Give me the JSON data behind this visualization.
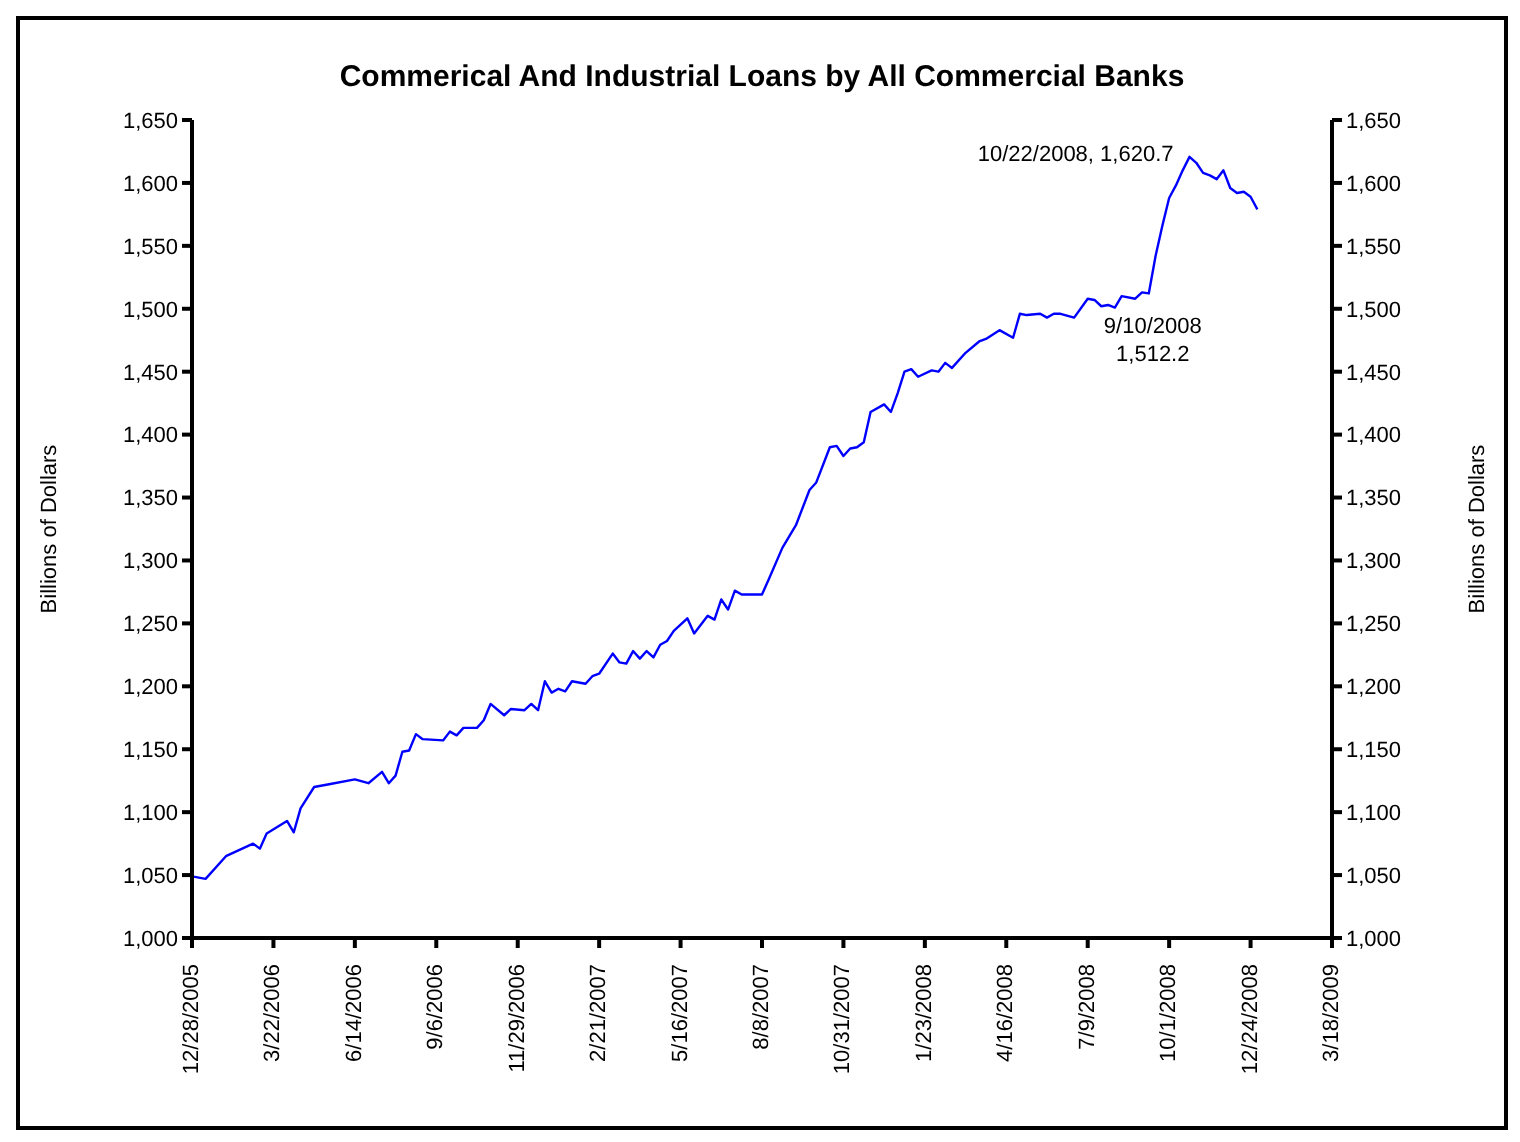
{
  "chart_data": {
    "type": "line",
    "title": "Commerical And Industrial Loans by All Commercial Banks",
    "ylabel": "Billions of Dollars",
    "y2label": "Billions of Dollars",
    "x": [
      "2005-12-28",
      "2006-01-11",
      "2006-02-01",
      "2006-03-01",
      "2006-03-08",
      "2006-03-15",
      "2006-04-05",
      "2006-04-12",
      "2006-04-19",
      "2006-05-03",
      "2006-05-17",
      "2006-06-14",
      "2006-06-28",
      "2006-07-12",
      "2006-07-19",
      "2006-07-26",
      "2006-08-02",
      "2006-08-09",
      "2006-08-16",
      "2006-08-23",
      "2006-09-13",
      "2006-09-20",
      "2006-09-27",
      "2006-10-04",
      "2006-10-18",
      "2006-10-25",
      "2006-11-01",
      "2006-11-15",
      "2006-11-22",
      "2006-12-06",
      "2006-12-13",
      "2006-12-20",
      "2006-12-27",
      "2007-01-03",
      "2007-01-10",
      "2007-01-17",
      "2007-01-24",
      "2007-02-07",
      "2007-02-14",
      "2007-02-21",
      "2007-03-07",
      "2007-03-14",
      "2007-03-21",
      "2007-03-28",
      "2007-04-04",
      "2007-04-11",
      "2007-04-18",
      "2007-04-25",
      "2007-05-02",
      "2007-05-09",
      "2007-05-23",
      "2007-05-30",
      "2007-06-13",
      "2007-06-20",
      "2007-06-27",
      "2007-07-04",
      "2007-07-11",
      "2007-07-18",
      "2007-08-08",
      "2007-08-15",
      "2007-08-29",
      "2007-09-12",
      "2007-09-26",
      "2007-10-03",
      "2007-10-17",
      "2007-10-24",
      "2007-10-31",
      "2007-11-07",
      "2007-11-14",
      "2007-11-21",
      "2007-11-28",
      "2007-12-12",
      "2007-12-19",
      "2007-12-26",
      "2008-01-02",
      "2008-01-09",
      "2008-01-16",
      "2008-01-30",
      "2008-02-06",
      "2008-02-13",
      "2008-02-20",
      "2008-03-05",
      "2008-03-19",
      "2008-03-26",
      "2008-04-09",
      "2008-04-23",
      "2008-04-30",
      "2008-05-07",
      "2008-05-21",
      "2008-05-28",
      "2008-06-04",
      "2008-06-11",
      "2008-06-25",
      "2008-07-09",
      "2008-07-16",
      "2008-07-23",
      "2008-07-30",
      "2008-08-06",
      "2008-08-13",
      "2008-08-27",
      "2008-09-03",
      "2008-09-10",
      "2008-09-17",
      "2008-09-24",
      "2008-10-01",
      "2008-10-08",
      "2008-10-15",
      "2008-10-22",
      "2008-10-29",
      "2008-11-05",
      "2008-11-12",
      "2008-11-19",
      "2008-11-26",
      "2008-12-03",
      "2008-12-10",
      "2008-12-17",
      "2008-12-24",
      "2008-12-31"
    ],
    "series": [
      {
        "color": "#0000ff",
        "values": [
          1049,
          1047,
          1065,
          1075,
          1071,
          1083,
          1093,
          1084,
          1103,
          1120,
          1122,
          1126,
          1123,
          1132,
          1123,
          1129,
          1148,
          1149,
          1162,
          1158,
          1157,
          1164,
          1161,
          1167,
          1167,
          1173,
          1186,
          1177,
          1182,
          1181,
          1186,
          1181,
          1204,
          1195,
          1198,
          1196,
          1204,
          1202,
          1208,
          1210,
          1226,
          1219,
          1218,
          1228,
          1222,
          1228,
          1223,
          1233,
          1236,
          1244,
          1254,
          1242,
          1256,
          1253,
          1269,
          1261,
          1276,
          1273,
          1273,
          1285,
          1310,
          1328,
          1356,
          1362,
          1390,
          1391,
          1383,
          1389,
          1390,
          1394,
          1418,
          1424,
          1418,
          1433,
          1450,
          1452,
          1446,
          1451,
          1450,
          1457,
          1453,
          1465,
          1474,
          1476,
          1483,
          1477,
          1496,
          1495,
          1496,
          1493,
          1496,
          1496,
          1493,
          1508,
          1507,
          1502,
          1503,
          1501,
          1510,
          1508,
          1513,
          1512.2,
          1542,
          1566,
          1588,
          1598,
          1610,
          1620.7,
          1616,
          1608,
          1606,
          1603,
          1610,
          1596,
          1592,
          1593,
          1589,
          1579
        ]
      }
    ],
    "xlim": [
      "2005-12-28",
      "2009-03-18"
    ],
    "xticks": [
      {
        "value": "2005-12-28",
        "label": "12/28/2005"
      },
      {
        "value": "2006-03-22",
        "label": "3/22/2006"
      },
      {
        "value": "2006-06-14",
        "label": "6/14/2006"
      },
      {
        "value": "2006-09-06",
        "label": "9/6/2006"
      },
      {
        "value": "2006-11-29",
        "label": "11/29/2006"
      },
      {
        "value": "2007-02-21",
        "label": "2/21/2007"
      },
      {
        "value": "2007-05-16",
        "label": "5/16/2007"
      },
      {
        "value": "2007-08-08",
        "label": "8/8/2007"
      },
      {
        "value": "2007-10-31",
        "label": "10/31/2007"
      },
      {
        "value": "2008-01-23",
        "label": "1/23/2008"
      },
      {
        "value": "2008-04-16",
        "label": "4/16/2008"
      },
      {
        "value": "2008-07-09",
        "label": "7/9/2008"
      },
      {
        "value": "2008-10-01",
        "label": "10/1/2008"
      },
      {
        "value": "2008-12-24",
        "label": "12/24/2008"
      },
      {
        "value": "2009-03-18",
        "label": "3/18/2009"
      }
    ],
    "ylim": [
      1000,
      1650
    ],
    "yticks": [
      {
        "value": 1000,
        "label": "1,000"
      },
      {
        "value": 1050,
        "label": "1,050"
      },
      {
        "value": 1100,
        "label": "1,100"
      },
      {
        "value": 1150,
        "label": "1,150"
      },
      {
        "value": 1200,
        "label": "1,200"
      },
      {
        "value": 1250,
        "label": "1,250"
      },
      {
        "value": 1300,
        "label": "1,300"
      },
      {
        "value": 1350,
        "label": "1,350"
      },
      {
        "value": 1400,
        "label": "1,400"
      },
      {
        "value": 1450,
        "label": "1,450"
      },
      {
        "value": 1500,
        "label": "1,500"
      },
      {
        "value": 1550,
        "label": "1,550"
      },
      {
        "value": 1600,
        "label": "1,600"
      },
      {
        "value": 1650,
        "label": "1,650"
      }
    ],
    "y2lim": [
      1000,
      1650
    ],
    "y2ticks": [
      {
        "value": 1000,
        "label": "1,000"
      },
      {
        "value": 1050,
        "label": "1,050"
      },
      {
        "value": 1100,
        "label": "1,100"
      },
      {
        "value": 1150,
        "label": "1,150"
      },
      {
        "value": 1200,
        "label": "1,200"
      },
      {
        "value": 1250,
        "label": "1,250"
      },
      {
        "value": 1300,
        "label": "1,300"
      },
      {
        "value": 1350,
        "label": "1,350"
      },
      {
        "value": 1400,
        "label": "1,400"
      },
      {
        "value": 1450,
        "label": "1,450"
      },
      {
        "value": 1500,
        "label": "1,500"
      },
      {
        "value": 1550,
        "label": "1,550"
      },
      {
        "value": 1600,
        "label": "1,600"
      },
      {
        "value": 1650,
        "label": "1,650"
      }
    ],
    "annotations": [
      {
        "text": "10/22/2008, 1,620.7",
        "x": "2008-10-22",
        "y": 1620.7
      },
      {
        "text": "9/10/2008\n1,512.2",
        "x": "2008-09-10",
        "y": 1512.2
      }
    ],
    "marker": "none",
    "line_style": "solid"
  }
}
